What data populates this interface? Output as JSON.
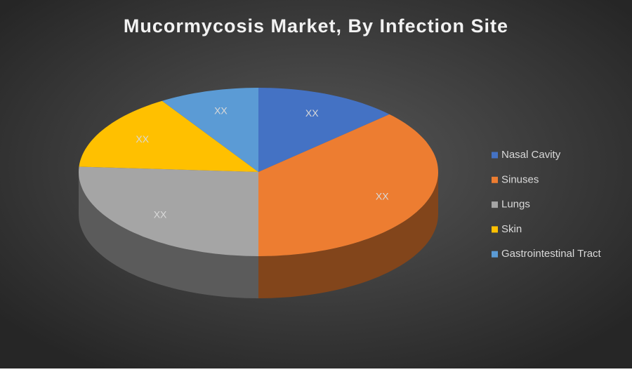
{
  "chart_data": {
    "type": "pie3d",
    "title": "Mucormycosis Market, By Infection Site",
    "categories": [
      "Nasal Cavity",
      "Sinuses",
      "Lungs",
      "Skin",
      "Gastrointestinal Tract"
    ],
    "values": [
      13,
      37,
      26,
      15,
      9
    ],
    "value_labels": [
      "XX",
      "XX",
      "XX",
      "XX",
      "XX"
    ],
    "colors": [
      "#4472c4",
      "#ed7d31",
      "#a5a5a5",
      "#ffc000",
      "#5b9bd5"
    ],
    "legend": "right"
  }
}
